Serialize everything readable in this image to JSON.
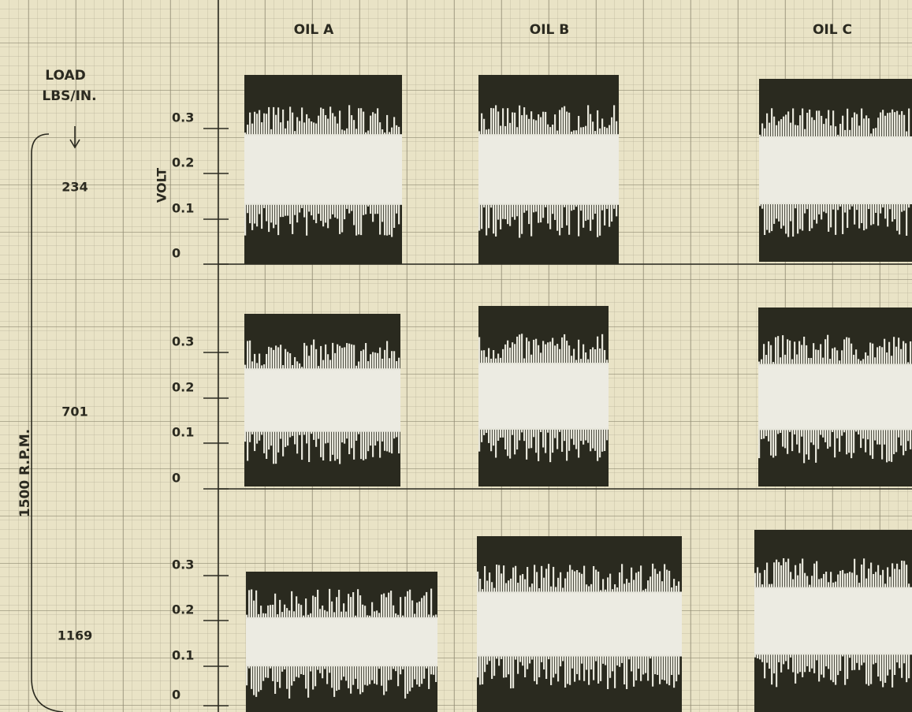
{
  "header": {
    "columns": [
      "OIL A",
      "OIL B",
      "OIL C"
    ]
  },
  "load_label": [
    "LOAD",
    "LBS/IN."
  ],
  "speed_label": "1500 R.P.M.",
  "axis_label": "VOLT",
  "rows": [
    {
      "load": "234",
      "ticks": [
        "0.3",
        "0.2",
        "0.1",
        "0"
      ]
    },
    {
      "load": "701",
      "ticks": [
        "0.3",
        "0.2",
        "0.1",
        "0"
      ]
    },
    {
      "load": "1169",
      "ticks": [
        "0.3",
        "0.2",
        "0.1",
        "0"
      ]
    }
  ]
}
